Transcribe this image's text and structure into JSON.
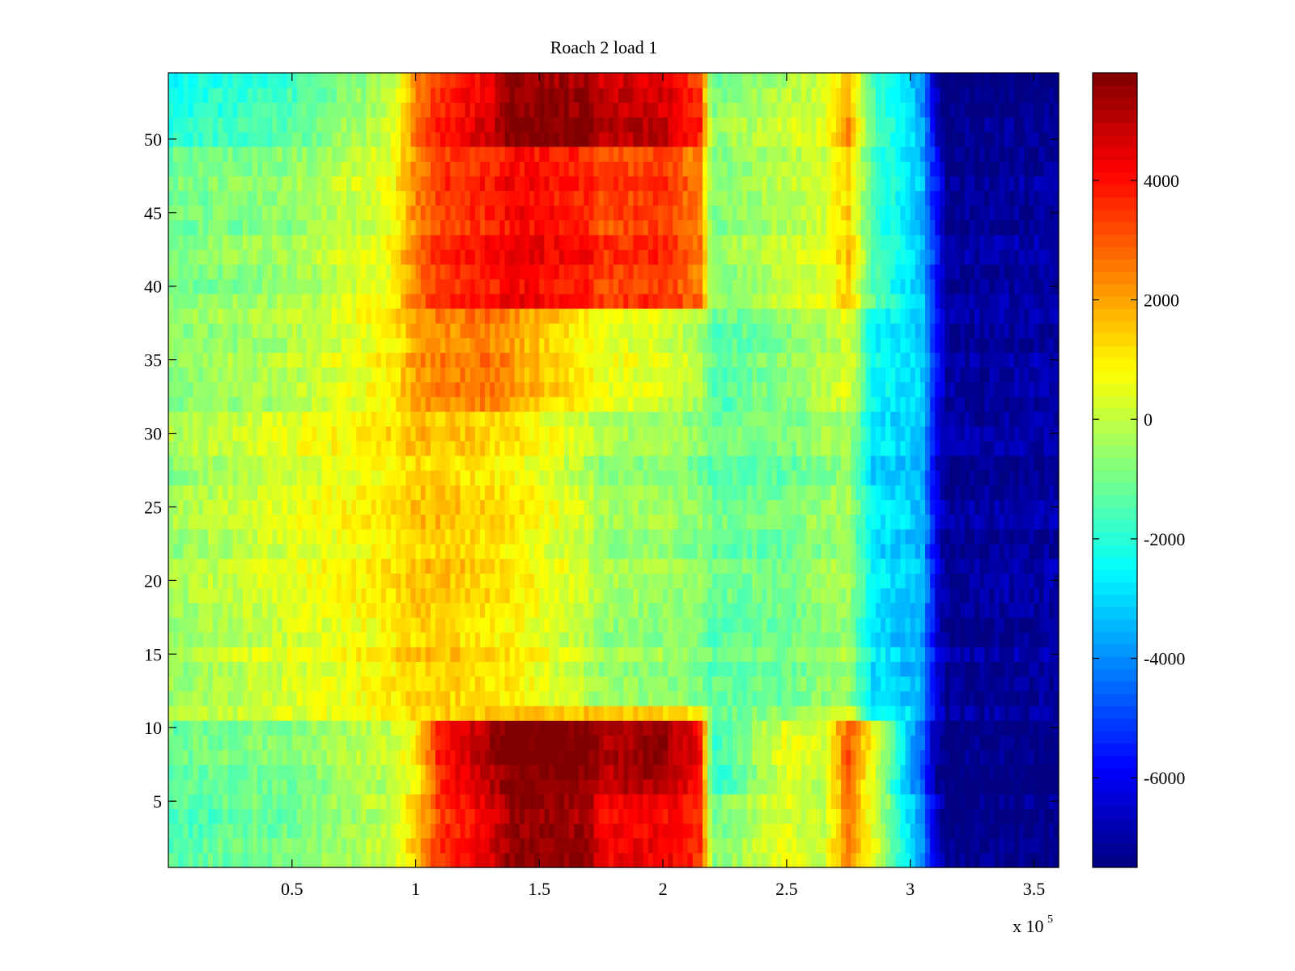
{
  "chart_data": {
    "type": "heatmap",
    "title": "Roach 2 load 1",
    "xlabel": "",
    "ylabel": "",
    "x_exponent_label": {
      "base": "x 10",
      "exponent": "5"
    },
    "x_range": [
      0,
      3.6
    ],
    "y_range": [
      0.5,
      54.5
    ],
    "x_ticks": [
      {
        "value": 0.5,
        "label": "0.5"
      },
      {
        "value": 1,
        "label": "1"
      },
      {
        "value": 1.5,
        "label": "1.5"
      },
      {
        "value": 2,
        "label": "2"
      },
      {
        "value": 2.5,
        "label": "2.5"
      },
      {
        "value": 3,
        "label": "3"
      },
      {
        "value": 3.5,
        "label": "3.5"
      }
    ],
    "y_ticks": [
      {
        "value": 5,
        "label": "5"
      },
      {
        "value": 10,
        "label": "10"
      },
      {
        "value": 15,
        "label": "15"
      },
      {
        "value": 20,
        "label": "20"
      },
      {
        "value": 25,
        "label": "25"
      },
      {
        "value": 30,
        "label": "30"
      },
      {
        "value": 35,
        "label": "35"
      },
      {
        "value": 40,
        "label": "40"
      },
      {
        "value": 45,
        "label": "45"
      },
      {
        "value": 50,
        "label": "50"
      }
    ],
    "colorbar": {
      "colormap": "jet",
      "range": [
        -7500,
        5800
      ],
      "ticks": [
        {
          "value": 4000,
          "label": "4000"
        },
        {
          "value": 2000,
          "label": "2000"
        },
        {
          "value": 0,
          "label": "0"
        },
        {
          "value": -2000,
          "label": "-2000"
        },
        {
          "value": -4000,
          "label": "-4000"
        },
        {
          "value": -6000,
          "label": "-6000"
        }
      ]
    },
    "rows": 54,
    "x_breakpoints": [
      0,
      0.5,
      0.9,
      1.0,
      1.1,
      1.3,
      1.4,
      1.7,
      1.75,
      2.0,
      2.15,
      2.2,
      2.5,
      2.65,
      2.75,
      2.85,
      3.0,
      3.05,
      3.1,
      3.15,
      3.6
    ],
    "row_groups": [
      {
        "rows": [
          1,
          5
        ],
        "profile": [
          -1500,
          -1000,
          0,
          1500,
          3500,
          4500,
          5600,
          5400,
          4200,
          4300,
          3500,
          -1000,
          500,
          0,
          2500,
          500,
          -3000,
          -4000,
          -6500,
          -7500,
          -7300
        ]
      },
      {
        "rows": [
          6,
          10
        ],
        "profile": [
          -1200,
          -800,
          0,
          800,
          3800,
          5200,
          6000,
          5800,
          5000,
          5500,
          4000,
          -2000,
          500,
          0,
          3000,
          500,
          -3500,
          -4500,
          -7000,
          -7500,
          -7500
        ]
      },
      {
        "rows": [
          11,
          11
        ],
        "profile": [
          -500,
          200,
          600,
          1000,
          1300,
          1200,
          1400,
          1300,
          1200,
          1100,
          900,
          -1500,
          -800,
          -500,
          200,
          -2500,
          -3000,
          -4000,
          -6000,
          -7200,
          -7300
        ]
      },
      {
        "rows": [
          12,
          31
        ],
        "profile": [
          -500,
          400,
          1000,
          1500,
          1500,
          1200,
          1000,
          0,
          -500,
          -500,
          -800,
          -1200,
          -1000,
          -600,
          -400,
          -2800,
          -3200,
          -3500,
          -6000,
          -7200,
          -7000
        ]
      },
      {
        "rows": [
          32,
          38
        ],
        "profile": [
          -800,
          -200,
          900,
          2000,
          2300,
          2500,
          2000,
          800,
          500,
          300,
          -300,
          -1500,
          -800,
          -200,
          300,
          -2500,
          -3000,
          -3200,
          -5500,
          -7200,
          -7000
        ]
      },
      {
        "rows": [
          39,
          49
        ],
        "profile": [
          -1000,
          -500,
          600,
          2500,
          3500,
          3800,
          4200,
          3800,
          3300,
          3500,
          2500,
          -800,
          0,
          300,
          1500,
          -1500,
          -2800,
          -3500,
          -5500,
          -7200,
          -7000
        ]
      },
      {
        "rows": [
          50,
          54
        ],
        "profile": [
          -2200,
          -1500,
          0,
          2500,
          3800,
          4500,
          5800,
          5500,
          5000,
          4800,
          3500,
          -800,
          0,
          300,
          2000,
          -1500,
          -3000,
          -3800,
          -6500,
          -7500,
          -7300
        ]
      }
    ]
  }
}
